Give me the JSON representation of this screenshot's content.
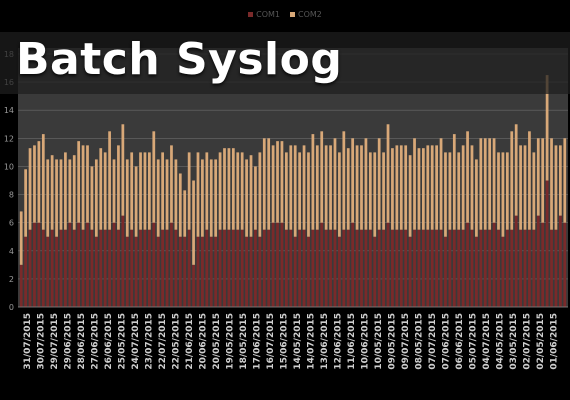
{
  "banner": {
    "title": "Batch Syslog"
  },
  "legend": {
    "items": [
      {
        "label": "COM1",
        "color": "#7a2a2a"
      },
      {
        "label": "COM2",
        "color": "#d8a878"
      }
    ]
  },
  "chart_data": {
    "type": "bar",
    "stacked": true,
    "ylim": [
      0,
      18
    ],
    "yticks": [
      0,
      2,
      4,
      6,
      8,
      10,
      12,
      14,
      16,
      18
    ],
    "grid": true,
    "legend_position": "top",
    "series": [
      {
        "name": "COM1",
        "color": "#7a2a2a",
        "values": [
          3.0,
          5.0,
          5.5,
          6.0,
          6.0,
          5.5,
          5.0,
          5.5,
          5.0,
          5.5,
          5.5,
          6.0,
          5.5,
          6.0,
          5.5,
          6.0,
          5.5,
          5.0,
          5.5,
          5.5,
          5.5,
          6.0,
          5.5,
          6.5,
          5.0,
          5.5,
          5.0,
          5.5,
          5.5,
          5.5,
          6.0,
          5.0,
          5.5,
          5.5,
          6.0,
          5.5,
          5.0,
          5.0,
          5.5,
          3.0,
          5.0,
          5.0,
          5.5,
          5.0,
          5.0,
          5.5,
          5.5,
          5.5,
          5.5,
          5.5,
          5.5,
          5.0,
          5.0,
          5.5,
          5.0,
          5.5,
          5.5,
          6.0,
          6.0,
          6.0,
          5.5,
          5.5,
          5.0,
          5.5,
          5.5,
          5.0,
          5.5,
          5.5,
          6.0,
          5.5,
          5.5,
          5.5,
          5.0,
          5.5,
          5.5,
          6.0,
          5.5,
          5.5,
          5.5,
          5.5,
          5.0,
          5.5,
          5.5,
          6.0,
          5.5,
          5.5,
          5.5,
          5.5,
          5.0,
          5.5,
          5.5,
          5.5,
          5.5,
          5.5,
          5.5,
          5.5,
          5.0,
          5.5,
          5.5,
          5.5,
          5.5,
          6.0,
          5.5,
          5.0,
          5.5,
          5.5,
          5.5,
          6.0,
          5.5,
          5.0,
          5.5,
          5.5,
          6.5,
          5.5,
          5.5,
          5.5,
          5.5,
          6.5,
          6.0,
          9.0,
          5.5,
          5.5,
          6.5,
          6.0
        ]
      },
      {
        "name": "COM2",
        "color": "#d8a878",
        "values": [
          3.8,
          4.8,
          5.8,
          5.5,
          5.8,
          6.8,
          5.5,
          5.3,
          5.5,
          5.0,
          5.5,
          4.5,
          5.3,
          5.8,
          6.0,
          5.5,
          4.5,
          5.5,
          5.8,
          5.5,
          7.0,
          4.5,
          6.0,
          6.5,
          5.5,
          5.5,
          5.0,
          5.5,
          5.5,
          5.5,
          6.5,
          5.5,
          5.5,
          5.0,
          5.5,
          5.0,
          4.5,
          3.3,
          5.5,
          6.0,
          6.0,
          5.5,
          5.5,
          5.5,
          5.5,
          5.5,
          5.8,
          5.8,
          5.8,
          5.5,
          5.5,
          5.5,
          5.8,
          4.5,
          6.0,
          6.5,
          6.5,
          5.5,
          5.8,
          5.8,
          5.5,
          6.0,
          6.5,
          5.5,
          6.0,
          6.0,
          6.8,
          6.0,
          6.5,
          6.0,
          6.0,
          6.5,
          6.0,
          7.0,
          5.8,
          6.0,
          6.0,
          6.0,
          6.5,
          5.5,
          6.0,
          6.5,
          5.5,
          7.0,
          5.8,
          6.0,
          6.0,
          6.0,
          5.8,
          6.5,
          5.8,
          5.8,
          6.0,
          6.0,
          6.0,
          6.5,
          6.0,
          5.5,
          6.8,
          5.5,
          6.0,
          6.5,
          6.0,
          5.5,
          6.5,
          6.5,
          6.5,
          6.0,
          5.5,
          6.0,
          5.5,
          7.0,
          6.5,
          6.0,
          6.0,
          7.0,
          5.5,
          5.5,
          6.0,
          7.5,
          6.5,
          6.0,
          5.0,
          6.0
        ]
      }
    ],
    "x_tick_labels": [
      "31/07/2015",
      "30/07/2015",
      "29/07/2015",
      "29/06/2015",
      "28/06/2015",
      "27/06/2015",
      "26/06/2015",
      "25/05/2015",
      "24/07/2015",
      "23/07/2015",
      "22/07/2015",
      "22/05/2015",
      "21/06/2015",
      "20/06/2015",
      "20/05/2015",
      "19/05/2015",
      "18/05/2015",
      "17/06/2015",
      "16/07/2015",
      "15/06/2015",
      "14/05/2015",
      "14/07/2015",
      "13/06/2015",
      "12/06/2015",
      "11/06/2015",
      "10/06/2015",
      "10/05/2015",
      "09/05/2015",
      "09/07/2015",
      "08/05/2015",
      "07/07/2015",
      "07/06/2015",
      "06/06/2015",
      "05/07/2015",
      "04/07/2015",
      "04/05/2015",
      "03/05/2015",
      "02/07/2015",
      "02/05/2015",
      "01/06/2015"
    ]
  }
}
